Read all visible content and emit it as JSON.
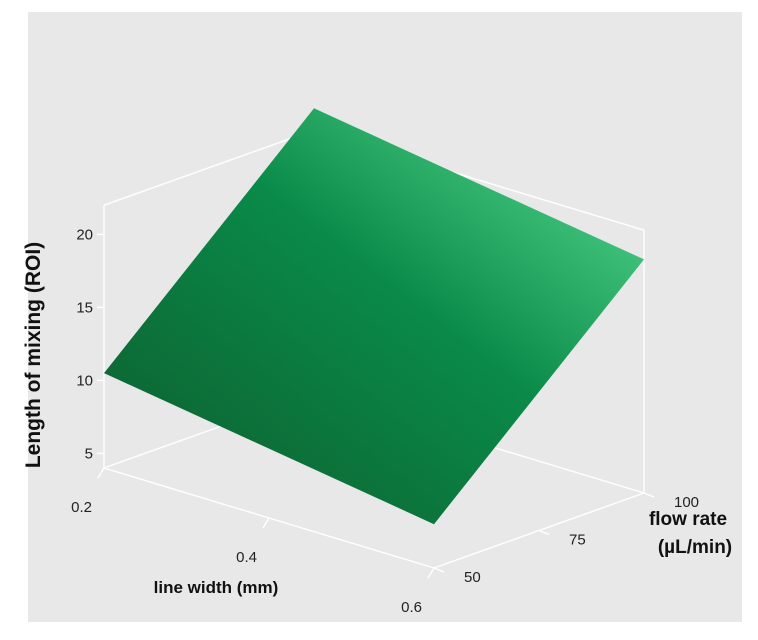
{
  "chart_data": {
    "type": "surface",
    "title": "",
    "xlabel": "line width (mm)",
    "ylabel": "flow rate",
    "ylabel_unit": "(µL/min)",
    "zlabel": "Length of mixing (ROI)",
    "x_ticks": [
      "0.2",
      "0.4",
      "0.6"
    ],
    "y_ticks": [
      "50",
      "75",
      "100"
    ],
    "z_ticks": [
      "5",
      "10",
      "15",
      "20"
    ],
    "xlim": [
      0.2,
      0.6
    ],
    "ylim": [
      50,
      100
    ],
    "zlim": [
      4,
      22
    ],
    "surface_corners": [
      {
        "x": 0.2,
        "y": 50,
        "z": 10.5
      },
      {
        "x": 0.6,
        "y": 50,
        "z": 7.0
      },
      {
        "x": 0.6,
        "y": 100,
        "z": 20.0
      },
      {
        "x": 0.2,
        "y": 100,
        "z": 23.5
      }
    ],
    "colors": {
      "background": "#e8e8e8",
      "box": "#ffffff",
      "surface_dark": "#0d5a2c",
      "surface_mid": "#0a8a48",
      "surface_light": "#5fe39a"
    }
  }
}
